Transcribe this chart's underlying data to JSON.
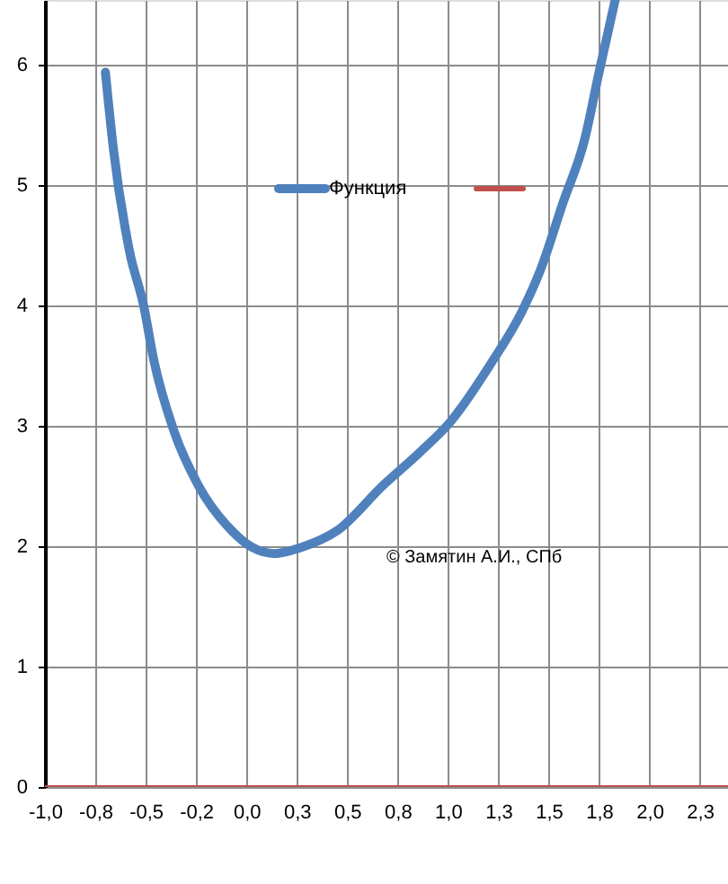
{
  "chart_data": {
    "type": "line",
    "xlim": [
      -1.0,
      2.39
    ],
    "ylim": [
      0,
      6.54
    ],
    "xticks": [
      {
        "value": -1.0,
        "label": "-1,0"
      },
      {
        "value": -0.75,
        "label": "-0,8"
      },
      {
        "value": -0.5,
        "label": "-0,5"
      },
      {
        "value": -0.25,
        "label": "-0,2"
      },
      {
        "value": 0,
        "label": "0,0"
      },
      {
        "value": 0.25,
        "label": "0,3"
      },
      {
        "value": 0.5,
        "label": "0,5"
      },
      {
        "value": 0.75,
        "label": "0,8"
      },
      {
        "value": 1.0,
        "label": "1,0"
      },
      {
        "value": 1.25,
        "label": "1,3"
      },
      {
        "value": 1.5,
        "label": "1,5"
      },
      {
        "value": 1.75,
        "label": "1,8"
      },
      {
        "value": 2.0,
        "label": "2,0"
      },
      {
        "value": 2.25,
        "label": "2,3"
      }
    ],
    "yticks": [
      0,
      1,
      2,
      3,
      4,
      5,
      6
    ],
    "grid": true,
    "legend": "top",
    "marker": "none",
    "line_style": "solid",
    "annotations": [
      "© Замятин А.И., СПб"
    ],
    "series": [
      {
        "name": "Функция",
        "color": "#4f81bd",
        "x": [
          -0.7,
          -0.66,
          -0.58,
          -0.51,
          -0.46,
          -0.36,
          -0.24,
          -0.09,
          0.03,
          0.14,
          0.27,
          0.45,
          0.68,
          0.86,
          1.01,
          1.21,
          1.37,
          1.46,
          1.57,
          1.68,
          1.75,
          1.83
        ],
        "values": [
          5.94,
          5.3,
          4.45,
          4.0,
          3.55,
          2.96,
          2.51,
          2.16,
          1.99,
          1.94,
          1.99,
          2.13,
          2.51,
          2.78,
          3.03,
          3.51,
          3.96,
          4.3,
          4.85,
          5.39,
          5.94,
          6.54
        ]
      },
      {
        "color": "#c0504d",
        "x": [
          -1.0,
          2.39
        ],
        "values": [
          0,
          0
        ]
      }
    ]
  }
}
